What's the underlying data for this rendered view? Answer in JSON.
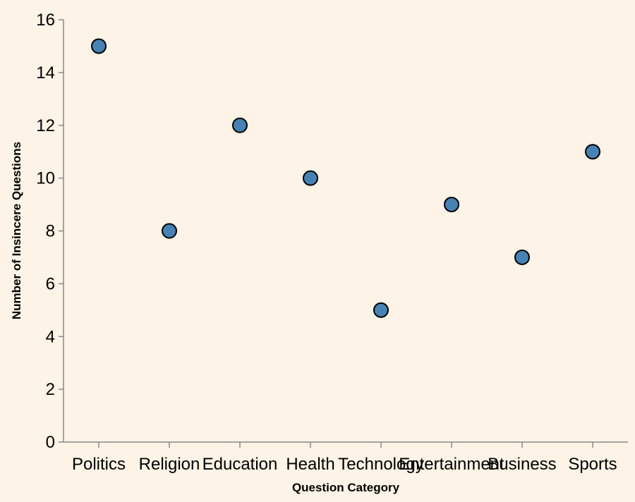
{
  "colors": {
    "background": "#fdf3e6",
    "point_fill": "#4682b4",
    "point_stroke": "#000000",
    "axis": "#888888"
  },
  "chart_data": {
    "type": "scatter",
    "title": "",
    "xlabel": "Question Category",
    "ylabel": "Number of Insincere Questions",
    "categories": [
      "Politics",
      "Religion",
      "Education",
      "Health",
      "Technology",
      "Entertainment",
      "Business",
      "Sports"
    ],
    "values": [
      15,
      8,
      12,
      10,
      5,
      9,
      7,
      11
    ],
    "ylim": [
      0,
      16
    ],
    "yticks": [
      0,
      2,
      4,
      6,
      8,
      10,
      12,
      14,
      16
    ],
    "grid": false,
    "legend": "none"
  }
}
